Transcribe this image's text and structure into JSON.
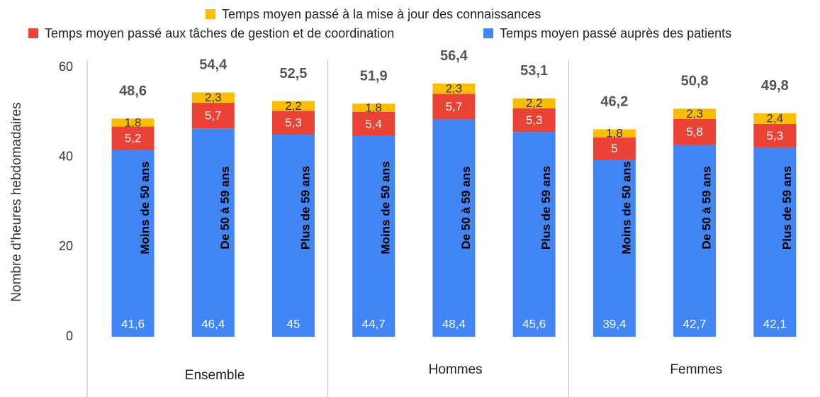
{
  "chart_data": {
    "type": "stacked_bar",
    "y_label": "Nombre d'heures hebdomadaires",
    "groups": [
      "Ensemble",
      "Hommes",
      "Femmes"
    ],
    "categories": [
      "Moins de 50 ans",
      "De 50 à 59 ans",
      "Plus de 59 ans",
      "Moins de 50 ans",
      "De 50 à 59 ans",
      "Plus de 59 ans",
      "Moins de 50 ans",
      "De 50 à 59 ans",
      "Plus de 59 ans"
    ],
    "series": [
      {
        "name": "Temps moyen passé auprès des patients",
        "color": "#4285f4",
        "values": [
          41.6,
          46.4,
          45,
          44.7,
          48.4,
          45.6,
          39.4,
          42.7,
          42.1
        ],
        "value_labels": [
          "41,6",
          "46,4",
          "45",
          "44,7",
          "48,4",
          "45,6",
          "39,4",
          "42,7",
          "42,1"
        ]
      },
      {
        "name": "Temps moyen passé aux tâches de gestion et de coordination",
        "color": "#ea4335",
        "values": [
          5.2,
          5.7,
          5.3,
          5.4,
          5.7,
          5.3,
          5,
          5.8,
          5.3
        ],
        "value_labels": [
          "5,2",
          "5,7",
          "5,3",
          "5,4",
          "5,7",
          "5,3",
          "5",
          "5,8",
          "5,3"
        ]
      },
      {
        "name": "Temps moyen passé à la mise à jour des connaissances",
        "color": "#fbbc04",
        "values": [
          1.8,
          2.3,
          2.2,
          1.8,
          2.3,
          2.2,
          1.8,
          2.3,
          2.4
        ],
        "value_labels": [
          "1,8",
          "2,3",
          "2,2",
          "1,8",
          "2,3",
          "2,2",
          "1,8",
          "2,3",
          "2,4"
        ]
      }
    ],
    "totals": [
      48.6,
      54.4,
      52.5,
      51.9,
      56.4,
      53.1,
      46.2,
      50.8,
      49.8
    ],
    "total_labels": [
      "48,6",
      "54,4",
      "52,5",
      "51,9",
      "56,4",
      "53,1",
      "46,2",
      "50,8",
      "49,8"
    ],
    "ylim": [
      0,
      60
    ],
    "yticks": [
      0,
      20,
      40,
      60
    ],
    "grid": false
  }
}
